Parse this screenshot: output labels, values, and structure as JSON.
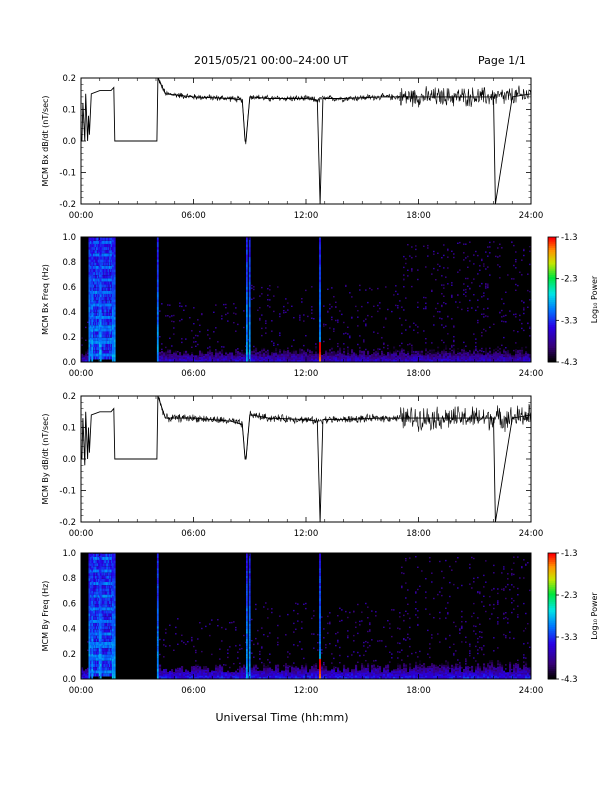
{
  "header": {
    "title": "2015/05/21  00:00–24:00 UT",
    "page": "Page 1/1"
  },
  "x_axis": {
    "label": "Universal Time (hh:mm)",
    "tick_labels": [
      "00:00",
      "06:00",
      "12:00",
      "18:00",
      "24:00"
    ],
    "range_hours": [
      0,
      24
    ]
  },
  "chart_data": [
    {
      "type": "line",
      "panel": "bx-timeseries",
      "ylabel": "MCM Bx dB/dt (nT/sec)",
      "ylim": [
        -0.2,
        0.2
      ],
      "y_tick_labels": [
        "-0.2",
        "-0.1",
        "0.0",
        "0.1",
        "0.2"
      ],
      "series": [
        {
          "x": [
            0.0,
            0.05,
            0.1,
            0.2,
            0.25,
            0.35,
            0.4,
            0.45,
            0.55,
            1.0,
            1.6,
            1.75,
            1.8,
            4.05,
            4.1,
            4.5,
            6.0,
            8.0,
            8.6,
            8.75,
            8.8,
            9.0,
            9.1,
            10.0,
            12.0,
            12.6,
            12.75,
            12.9,
            14.0,
            16.0,
            17.0,
            18.0,
            20.0,
            22.0,
            22.1,
            23.0,
            24.0
          ],
          "y": [
            0.0,
            0.0,
            0.12,
            0.0,
            0.15,
            0.0,
            0.08,
            0.02,
            0.15,
            0.16,
            0.16,
            0.17,
            0.0,
            0.0,
            0.2,
            0.15,
            0.14,
            0.135,
            0.13,
            0.0,
            0.0,
            0.14,
            0.14,
            0.135,
            0.135,
            0.13,
            -0.2,
            0.135,
            0.135,
            0.14,
            0.14,
            0.14,
            0.14,
            0.14,
            -0.2,
            0.14,
            0.15
          ]
        }
      ],
      "noise_bands": [
        {
          "x": [
            4.1,
            17.0
          ],
          "amplitude": 0.008
        },
        {
          "x": [
            17.0,
            24.0
          ],
          "amplitude": 0.025
        }
      ]
    },
    {
      "type": "heatmap",
      "panel": "bx-spectrogram",
      "ylabel": "MCM Bx Freq (Hz)",
      "ylim": [
        0.0,
        1.0
      ],
      "y_tick_labels": [
        "0.0",
        "0.2",
        "0.4",
        "0.6",
        "0.8",
        "1.0"
      ],
      "colorbar": {
        "label": "Log₁₀ Power",
        "range": [
          -4.3,
          -1.3
        ],
        "tick_labels": [
          "-1.3",
          "-2.3",
          "-3.3",
          "-4.3"
        ]
      },
      "broadband_times_hours": [
        0.4,
        0.55,
        0.95,
        1.0,
        1.65,
        1.75,
        4.05,
        8.8,
        8.95,
        12.7
      ],
      "pc_band_hours": [
        0.4,
        1.8
      ],
      "pc_band_freqs_hz": [
        0.05,
        0.15,
        0.25,
        0.35,
        0.45,
        0.55,
        0.65,
        0.75,
        0.85,
        0.95
      ],
      "background_level": -4.3,
      "lowfreq_level": -3.6
    },
    {
      "type": "line",
      "panel": "by-timeseries",
      "ylabel": "MCM By dB/dt (nT/sec)",
      "ylim": [
        -0.2,
        0.2
      ],
      "y_tick_labels": [
        "-0.2",
        "-0.1",
        "0.0",
        "0.1",
        "0.2"
      ],
      "series": [
        {
          "x": [
            0.0,
            0.05,
            0.1,
            0.2,
            0.25,
            0.35,
            0.4,
            0.45,
            0.55,
            1.0,
            1.6,
            1.75,
            1.8,
            4.05,
            4.1,
            4.5,
            6.0,
            8.0,
            8.6,
            8.75,
            8.8,
            9.0,
            9.1,
            10.0,
            12.0,
            12.6,
            12.75,
            12.9,
            14.0,
            16.0,
            17.0,
            18.0,
            20.0,
            21.0,
            22.0,
            22.1,
            23.0,
            24.0
          ],
          "y": [
            0.0,
            0.0,
            0.13,
            -0.02,
            0.15,
            0.0,
            0.1,
            0.02,
            0.14,
            0.15,
            0.15,
            0.16,
            0.0,
            0.0,
            0.2,
            0.13,
            0.13,
            0.12,
            0.11,
            0.0,
            0.0,
            0.14,
            0.14,
            0.13,
            0.125,
            0.12,
            -0.2,
            0.125,
            0.125,
            0.13,
            0.13,
            0.13,
            0.13,
            0.13,
            0.13,
            -0.2,
            0.13,
            0.14
          ]
        }
      ],
      "noise_bands": [
        {
          "x": [
            4.1,
            17.0
          ],
          "amplitude": 0.01
        },
        {
          "x": [
            17.0,
            24.0
          ],
          "amplitude": 0.03
        }
      ]
    },
    {
      "type": "heatmap",
      "panel": "by-spectrogram",
      "ylabel": "MCM By Freq (Hz)",
      "ylim": [
        0.0,
        1.0
      ],
      "y_tick_labels": [
        "0.0",
        "0.2",
        "0.4",
        "0.6",
        "0.8",
        "1.0"
      ],
      "colorbar": {
        "label": "Log₁₀ Power",
        "range": [
          -4.3,
          -1.3
        ],
        "tick_labels": [
          "-1.3",
          "-2.3",
          "-3.3",
          "-4.3"
        ]
      },
      "broadband_times_hours": [
        0.4,
        0.55,
        0.95,
        1.0,
        1.65,
        1.75,
        4.05,
        8.8,
        8.95,
        12.7
      ],
      "pc_band_hours": [
        0.4,
        1.8
      ],
      "pc_band_freqs_hz": [
        0.05,
        0.15,
        0.25,
        0.35,
        0.45,
        0.55,
        0.65,
        0.75,
        0.85,
        0.95
      ],
      "background_level": -4.3,
      "lowfreq_level": -3.4
    }
  ]
}
